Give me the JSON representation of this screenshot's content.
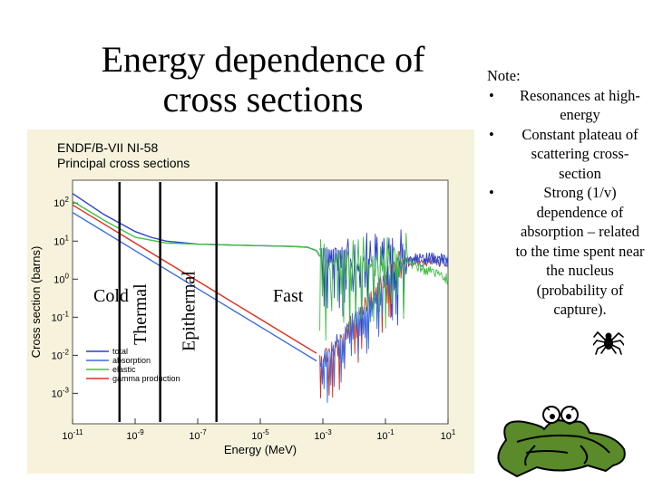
{
  "slide": {
    "title_line1": "Energy dependence of",
    "title_line2": "cross sections"
  },
  "notes": {
    "heading": "Note:",
    "bullet_char": "•",
    "items": [
      "Resonances at high-energy",
      "Constant plateau of scattering cross-section",
      "Strong (1/v) dependence of absorption – related to the time spent near the nucleus (probability of capture)."
    ]
  },
  "figure": {
    "header_line1": "ENDF/B-VII NI-58",
    "header_line2": "Principal cross sections",
    "regions": {
      "cold": "Cold",
      "thermal": "Thermal",
      "epithermal": "Epithermal",
      "fast": "Fast"
    }
  },
  "chart_data": {
    "type": "line",
    "title": "ENDF/B-VII NI-58 Principal cross sections",
    "xlabel": "Energy (MeV)",
    "ylabel": "Cross section (barns)",
    "x_scale": "log",
    "y_scale": "log",
    "xlim_exp": [
      -11,
      1
    ],
    "ylim_exp": [
      -3.8,
      2.6
    ],
    "x_ticks": [
      {
        "base": "10",
        "exp": "-11"
      },
      {
        "base": "10",
        "exp": "-9"
      },
      {
        "base": "10",
        "exp": "-7"
      },
      {
        "base": "10",
        "exp": "-5"
      },
      {
        "base": "10",
        "exp": "-3"
      },
      {
        "base": "10",
        "exp": "-1"
      },
      {
        "base": "10",
        "exp": "1"
      }
    ],
    "x_tick_exps": [
      -11,
      -9,
      -7,
      -5,
      -3,
      -1,
      1
    ],
    "y_ticks": [
      {
        "base": "10",
        "exp": "2"
      },
      {
        "base": "10",
        "exp": "1"
      },
      {
        "base": "10",
        "exp": "0"
      },
      {
        "base": "10",
        "exp": "-1"
      },
      {
        "base": "10",
        "exp": "-2"
      },
      {
        "base": "10",
        "exp": "-3"
      }
    ],
    "y_tick_exps": [
      2,
      1,
      0,
      -1,
      -2,
      -3
    ],
    "region_boundaries_exp": [
      -9.5,
      -8.2,
      -6.4
    ],
    "series": [
      {
        "name": "total",
        "color": "#2b3fc8",
        "points": [
          [
            -11,
            2.25
          ],
          [
            -10,
            1.7
          ],
          [
            -9,
            1.25
          ],
          [
            -8.5,
            1.1
          ],
          [
            -8,
            1.0
          ],
          [
            -7,
            0.92
          ],
          [
            -6,
            0.9
          ],
          [
            -5,
            0.88
          ],
          [
            -4,
            0.86
          ],
          [
            -3.5,
            0.84
          ],
          [
            -3.2,
            0.75
          ],
          [
            -3.1,
            0.6
          ]
        ]
      },
      {
        "name": "absorption",
        "color": "#3a6ae0",
        "points": [
          [
            -11,
            1.75
          ],
          [
            -10,
            1.25
          ],
          [
            -9,
            0.75
          ],
          [
            -8,
            0.25
          ],
          [
            -7,
            -0.25
          ],
          [
            -6,
            -0.75
          ],
          [
            -5,
            -1.25
          ],
          [
            -4,
            -1.75
          ],
          [
            -3.2,
            -2.15
          ]
        ]
      },
      {
        "name": "elastic",
        "color": "#40c040",
        "points": [
          [
            -11,
            2.05
          ],
          [
            -10,
            1.55
          ],
          [
            -9,
            1.1
          ],
          [
            -8,
            0.95
          ],
          [
            -7,
            0.92
          ],
          [
            -6,
            0.9
          ],
          [
            -5,
            0.88
          ],
          [
            -4,
            0.86
          ],
          [
            -3.5,
            0.84
          ],
          [
            -3.2,
            0.75
          ],
          [
            -3.1,
            0.6
          ]
        ]
      },
      {
        "name": "gamma production",
        "color": "#d83020",
        "points": [
          [
            -11,
            1.95
          ],
          [
            -10,
            1.45
          ],
          [
            -9,
            0.95
          ],
          [
            -8,
            0.45
          ],
          [
            -7,
            -0.05
          ],
          [
            -6,
            -0.55
          ],
          [
            -5,
            -1.05
          ],
          [
            -4,
            -1.55
          ],
          [
            -3.2,
            -1.95
          ]
        ]
      }
    ],
    "annotations": [
      "Cold",
      "Thermal",
      "Epithermal",
      "Fast"
    ],
    "legend_position": "bottom-left"
  }
}
